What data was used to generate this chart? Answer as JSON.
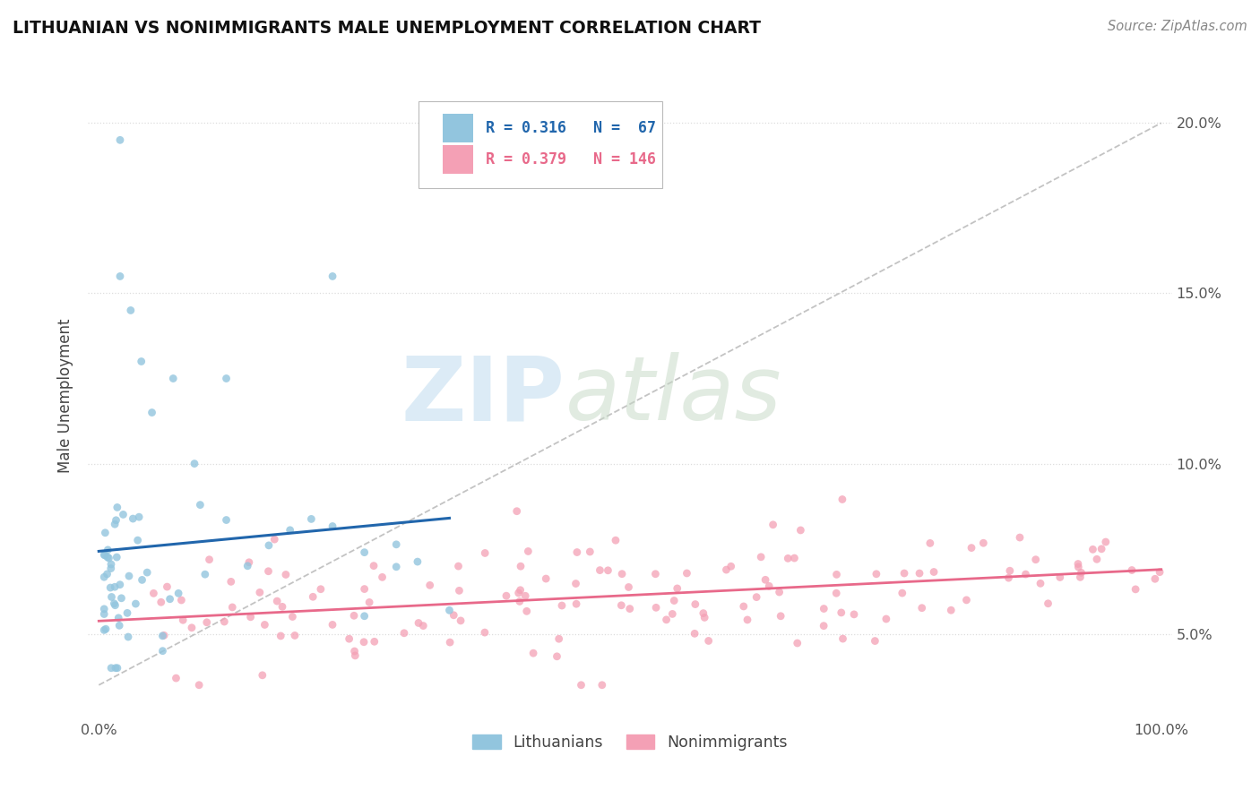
{
  "title": "LITHUANIAN VS NONIMMIGRANTS MALE UNEMPLOYMENT CORRELATION CHART",
  "source": "Source: ZipAtlas.com",
  "ylabel": "Male Unemployment",
  "xlim": [
    -0.01,
    1.01
  ],
  "ylim": [
    0.025,
    0.215
  ],
  "ytick_vals": [
    0.05,
    0.1,
    0.15,
    0.2
  ],
  "ytick_labels": [
    "5.0%",
    "10.0%",
    "15.0%",
    "20.0%"
  ],
  "xtick_vals": [
    0.0,
    1.0
  ],
  "xtick_labels": [
    "0.0%",
    "100.0%"
  ],
  "blue_color": "#92c5de",
  "pink_color": "#f4a0b5",
  "blue_line_color": "#2166ac",
  "pink_line_color": "#e8698a",
  "background_color": "#ffffff",
  "grid_color": "#dddddd",
  "watermark_zip_color": "#d8e8f0",
  "watermark_atlas_color": "#dde8dd",
  "legend_r1": "R = 0.316",
  "legend_n1": "N =  67",
  "legend_r2": "R = 0.379",
  "legend_n2": "N = 146"
}
